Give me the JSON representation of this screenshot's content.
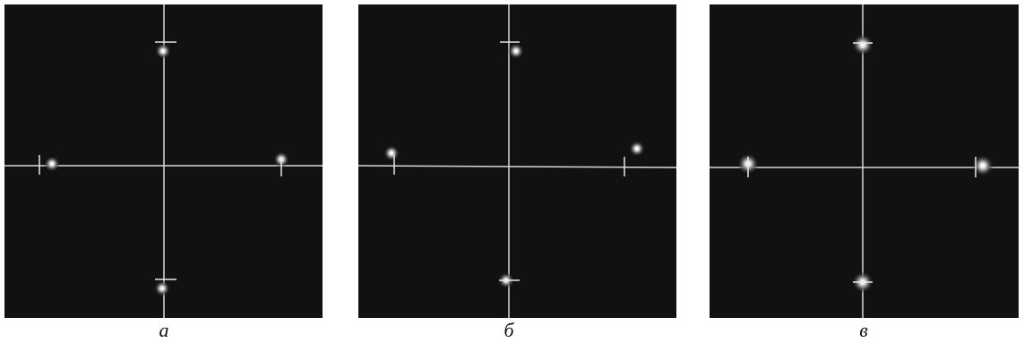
{
  "panels": [
    {
      "label": "а"
    },
    {
      "label": "б"
    },
    {
      "label": "в"
    }
  ]
}
